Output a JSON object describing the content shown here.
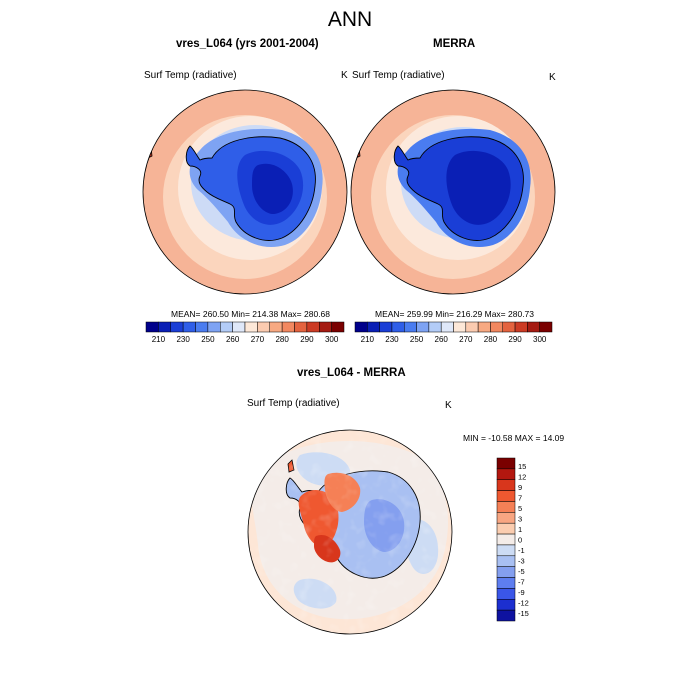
{
  "chart_data": [
    {
      "type": "heatmap",
      "title": "vres_L064 (yrs 2001-2004)",
      "subtitle": "Surf Temp (radiative)",
      "units": "K",
      "projection": "south polar stereographic",
      "stats": "MEAN= 260.50  Min= 214.38  Max= 280.68",
      "mean": 260.5,
      "min": 214.38,
      "max": 280.68,
      "colorbar_levels": [
        210,
        220,
        230,
        240,
        250,
        255,
        260,
        265,
        270,
        275,
        280,
        285,
        290,
        295,
        300
      ],
      "colorbar_labels": [
        "210",
        "230",
        "250",
        "260",
        "270",
        "280",
        "290",
        "300"
      ]
    },
    {
      "type": "heatmap",
      "title": "MERRA",
      "subtitle": "Surf Temp (radiative)",
      "units": "K",
      "projection": "south polar stereographic",
      "stats": "MEAN= 259.99  Min= 216.29  Max= 280.73",
      "mean": 259.99,
      "min": 216.29,
      "max": 280.73,
      "colorbar_levels": [
        210,
        220,
        230,
        240,
        250,
        255,
        260,
        265,
        270,
        275,
        280,
        285,
        290,
        295,
        300
      ],
      "colorbar_labels": [
        "210",
        "230",
        "250",
        "260",
        "270",
        "280",
        "290",
        "300"
      ]
    },
    {
      "type": "heatmap",
      "title": "vres_L064 - MERRA",
      "subtitle": "Surf Temp (radiative)",
      "units": "K",
      "projection": "south polar stereographic",
      "stats": "MIN = -10.58 MAX =  14.09",
      "min": -10.58,
      "max": 14.09,
      "colorbar_levels": [
        -15,
        -12,
        -9,
        -7,
        -5,
        -3,
        -1,
        1,
        3,
        5,
        7,
        9,
        12,
        15
      ],
      "colorbar_labels": [
        "15",
        "12",
        "9",
        "7",
        "5",
        "3",
        "1",
        "0",
        "-1",
        "-3",
        "-5",
        "-7",
        "-9",
        "-12",
        "-15"
      ]
    }
  ],
  "page": {
    "title": "ANN"
  },
  "colors": {
    "abs_scale": [
      "#00008b",
      "#0a1fb5",
      "#1a3ed6",
      "#2f5ee8",
      "#4a7cf0",
      "#7ea3f3",
      "#b3ccf7",
      "#dfe8f9",
      "#fde8d8",
      "#fbcbb0",
      "#f7a982",
      "#f28860",
      "#e4633f",
      "#cc3b24",
      "#a51b12",
      "#7a0000"
    ],
    "diff_scale": [
      "#7a0000",
      "#b3170f",
      "#d8361c",
      "#ef5830",
      "#f58056",
      "#f8a682",
      "#fbcdb0",
      "#f4ece8",
      "#cddcf4",
      "#a9c0f2",
      "#849fef",
      "#5e7ef0",
      "#3a56e8",
      "#1c2fd0",
      "#0e12a0"
    ]
  }
}
